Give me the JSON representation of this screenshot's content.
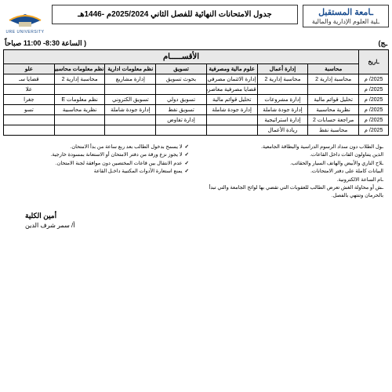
{
  "header": {
    "university": "ـامعة المستقبل",
    "faculty": "ـلية العلوم الإدارية والمالية",
    "title": "جدول الامتحانات النهائية للفصل الثاني 2025/2024م -1446هـ",
    "logo_text": "URE UNIVERSITY"
  },
  "timebar": {
    "right_label": "ـج)",
    "time_label": "( الساعة 8:30- 11:00 صباحاً"
  },
  "table": {
    "dept_header": "الأقســـــام",
    "date_header": "ـاريخ",
    "columns": [
      "محاسبة",
      "إدارة أعمال",
      "علوم مالية ومصرفية",
      "تسويق",
      "نظم معلومات ادارية",
      "نظم معلومات محاسبية",
      "علو"
    ],
    "rows": [
      {
        "date": "2025/ م",
        "c": [
          "محاسبة إدارية 2",
          "محاسبة إدارية 2",
          "إدارة الائتمان مصرفي",
          "بحوث تسويق",
          "إدارة مشاريع",
          "محاسبة إدارية 2",
          "قضايا سـ"
        ]
      },
      {
        "date": "2025/ م",
        "c": [
          "",
          "",
          "قضايا مصرفية معاصرة",
          "",
          "",
          "",
          "علا"
        ]
      },
      {
        "date": "2025/ م",
        "c": [
          "تحليل قوائم مالية",
          "إدارة مشروعات",
          "تحليل قوائم مالية",
          "تسويق دولي",
          "تسويق الكتروني",
          "نظم معلومات E",
          "جغرا"
        ]
      },
      {
        "date": "2025/ م",
        "c": [
          "نظرية محاسبية",
          "إدارة جودة شاملة",
          "إدارة جودة شاملة",
          "تسويق نفط",
          "إدارة جودة شاملة",
          "نظرية محاسبية",
          "تسو"
        ]
      },
      {
        "date": "2025/ م",
        "c": [
          "مراجعة حسابات 2",
          "إدارة استراتيجية",
          "",
          "إدارة تفاوض",
          "",
          "",
          ""
        ]
      },
      {
        "date": "2025/ م",
        "c": [
          "محاسبة نفط",
          "ريادة الأعمال",
          "",
          "",
          "",
          "",
          ""
        ]
      }
    ]
  },
  "notes": {
    "right": [
      "ـول الطلاب دون سداد الرسوم الدراسية والبطاقة الجامعية.",
      "الذين يتناولون القات داخل القاعات.",
      "ـلاح الناري والأبيض والهاتف السيار والحقائب.",
      "البيانات كاملة على دفتر الامتحانات.",
      "ـام الساعة الالكترونية.",
      "ـش أو محاولة الغش تعرض الطالب للعقوبات التي تقضي بها لوائح الجامعة والتي تبدأ بالحرمان وتنتهي بالفصل."
    ],
    "left": [
      "لا يسمح بدخول الطالب بعد ربع ساعة من بدأ الامتحان.",
      "لا يجوز نزع ورقة من دفتر الامتحان أو الاستعانة بمسودة خارجية.",
      "عدم الانتقال بين قاعات المختصين دون موافقة لجنة الامتحان.",
      "يمنع استعارة الأدوات المكتبية داخـل القاعة"
    ]
  },
  "signature": {
    "role": "أمين الكلية",
    "name": "أ/ سمر شرف الدين"
  }
}
